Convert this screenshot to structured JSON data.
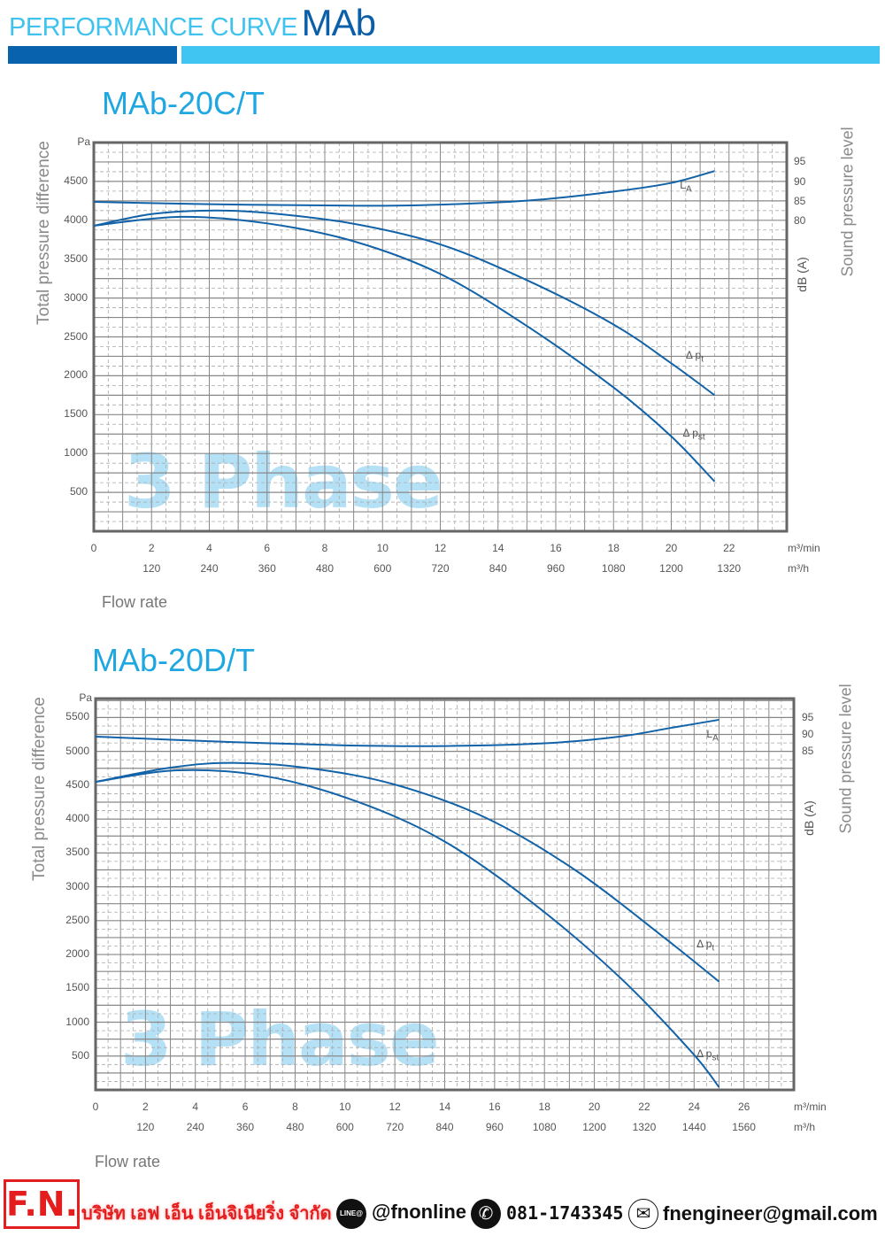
{
  "header": {
    "title_prefix": "PERFORMANCE CURVE",
    "title_series": "MAb",
    "accent_dark": "#0862ad",
    "accent_light": "#40c4f2"
  },
  "chart_data": [
    {
      "type": "line",
      "title": "MAb-20C/T",
      "ylabel": "Total pressure difference",
      "yunit": "Pa",
      "ylabel_right": "Sound pressure level",
      "yunit_right": "dB (A)",
      "xlabel": "Flow rate",
      "xunit": "m³/min",
      "xunit2": "m³/h",
      "xlim": [
        0,
        24
      ],
      "ylim": [
        0,
        5000
      ],
      "ylim_right": [
        1.7,
        100
      ],
      "x_ticks": [
        "0",
        "2",
        "4",
        "6",
        "8",
        "10",
        "12",
        "14",
        "16",
        "18",
        "20",
        "22"
      ],
      "x_tick_values": [
        0,
        2,
        4,
        6,
        8,
        10,
        12,
        14,
        16,
        18,
        20,
        22
      ],
      "x2_ticks": [
        "120",
        "240",
        "360",
        "480",
        "600",
        "720",
        "840",
        "960",
        "1080",
        "1200",
        "1320"
      ],
      "x2_tick_values": [
        2,
        4,
        6,
        8,
        10,
        12,
        14,
        16,
        18,
        20,
        22
      ],
      "y_ticks": [
        "500",
        "1000",
        "1500",
        "2000",
        "2500",
        "3000",
        "3500",
        "4000",
        "4500"
      ],
      "y_tick_values": [
        500,
        1000,
        1500,
        2000,
        2500,
        3000,
        3500,
        4000,
        4500
      ],
      "y_right_ticks": [
        "95",
        "90",
        "85",
        "80"
      ],
      "y_right_tick_values": [
        95,
        90,
        85,
        80
      ],
      "grid": true,
      "watermark": "3 Phase",
      "series": [
        {
          "name": "Δpt",
          "label": "Δ p",
          "sub": "t",
          "axis": "left",
          "points": [
            [
              0,
              3930
            ],
            [
              2,
              4080
            ],
            [
              4,
              4125
            ],
            [
              6,
              4095
            ],
            [
              9,
              3955
            ],
            [
              12,
              3690
            ],
            [
              15,
              3230
            ],
            [
              18,
              2660
            ],
            [
              20,
              2160
            ],
            [
              21.5,
              1750
            ]
          ],
          "label_at": [
            20.5,
            2250
          ]
        },
        {
          "name": "Δpst",
          "label": "Δ p",
          "sub": "st",
          "axis": "left",
          "points": [
            [
              0,
              3930
            ],
            [
              3,
              4045
            ],
            [
              6,
              3960
            ],
            [
              9,
              3730
            ],
            [
              12,
              3310
            ],
            [
              15,
              2640
            ],
            [
              18,
              1850
            ],
            [
              20,
              1220
            ],
            [
              21.5,
              640
            ]
          ],
          "label_at": [
            20.4,
            1250
          ]
        },
        {
          "name": "LA",
          "label": "L",
          "sub": "A",
          "axis": "right",
          "points": [
            [
              0,
              85
            ],
            [
              4,
              84.4
            ],
            [
              8,
              84.1
            ],
            [
              11,
              84.1
            ],
            [
              15,
              85.3
            ],
            [
              18,
              87.6
            ],
            [
              20,
              89.8
            ],
            [
              21.5,
              92.8
            ]
          ],
          "label_at": [
            20.3,
            89
          ]
        }
      ]
    },
    {
      "type": "line",
      "title": "MAb-20D/T",
      "ylabel": "Total pressure difference",
      "yunit": "Pa",
      "ylabel_right": "Sound pressure level",
      "yunit_right": "dB (A)",
      "xlabel": "Flow rate",
      "xunit": "m³/min",
      "xunit2": "m³/h",
      "xlim": [
        0,
        28
      ],
      "ylim": [
        0,
        5780
      ],
      "ylim_right": [
        -15.5,
        100.8
      ],
      "x_ticks": [
        "0",
        "2",
        "4",
        "6",
        "8",
        "10",
        "12",
        "14",
        "16",
        "18",
        "20",
        "22",
        "24",
        "26"
      ],
      "x_tick_values": [
        0,
        2,
        4,
        6,
        8,
        10,
        12,
        14,
        16,
        18,
        20,
        22,
        24,
        26
      ],
      "x2_ticks": [
        "120",
        "240",
        "360",
        "480",
        "600",
        "720",
        "840",
        "960",
        "1080",
        "1200",
        "1320",
        "1440",
        "1560"
      ],
      "x2_tick_values": [
        2,
        4,
        6,
        8,
        10,
        12,
        14,
        16,
        18,
        20,
        22,
        24,
        26
      ],
      "y_ticks": [
        "500",
        "1000",
        "1500",
        "2000",
        "2500",
        "3000",
        "3500",
        "4000",
        "4500",
        "5000",
        "5500"
      ],
      "y_tick_values": [
        500,
        1000,
        1500,
        2000,
        2500,
        3000,
        3500,
        4000,
        4500,
        5000,
        5500
      ],
      "y_right_ticks": [
        "95",
        "90",
        "85"
      ],
      "y_right_tick_values": [
        95,
        90,
        85
      ],
      "grid": true,
      "watermark": "3 Phase",
      "series": [
        {
          "name": "Δpt",
          "label": "Δ p",
          "sub": "t",
          "axis": "left",
          "points": [
            [
              0,
              4550
            ],
            [
              3,
              4760
            ],
            [
              5.5,
              4830
            ],
            [
              8.6,
              4750
            ],
            [
              12,
              4510
            ],
            [
              15.7,
              4010
            ],
            [
              19.3,
              3230
            ],
            [
              22.8,
              2250
            ],
            [
              25,
              1600
            ]
          ],
          "label_at": [
            24.1,
            2150
          ]
        },
        {
          "name": "Δpst",
          "label": "Δ p",
          "sub": "st",
          "axis": "left",
          "points": [
            [
              0,
              4550
            ],
            [
              3.3,
              4720
            ],
            [
              6.8,
              4635
            ],
            [
              10.4,
              4270
            ],
            [
              13.9,
              3690
            ],
            [
              17.5,
              2770
            ],
            [
              21,
              1670
            ],
            [
              23.9,
              560
            ],
            [
              25,
              40
            ]
          ],
          "label_at": [
            24.1,
            520
          ]
        },
        {
          "name": "LA",
          "label": "L",
          "sub": "A",
          "axis": "right",
          "points": [
            [
              0,
              89.5
            ],
            [
              5,
              88
            ],
            [
              10,
              86.9
            ],
            [
              14,
              86.7
            ],
            [
              18,
              87.5
            ],
            [
              21,
              89.5
            ],
            [
              23,
              92
            ],
            [
              25,
              94.5
            ]
          ],
          "label_at": [
            24.5,
            90
          ]
        }
      ]
    }
  ],
  "footer": {
    "logo": "F.N.",
    "company": "บริษัท เอฟ เอ็น เอ็นจิเนียริ่ง จำกัด",
    "line_badge": "LINE@",
    "line_id": "@fnonline",
    "phone": "081-1743345",
    "email": "fnengineer@gmail.com",
    "brand_color": "#e41e1e"
  }
}
